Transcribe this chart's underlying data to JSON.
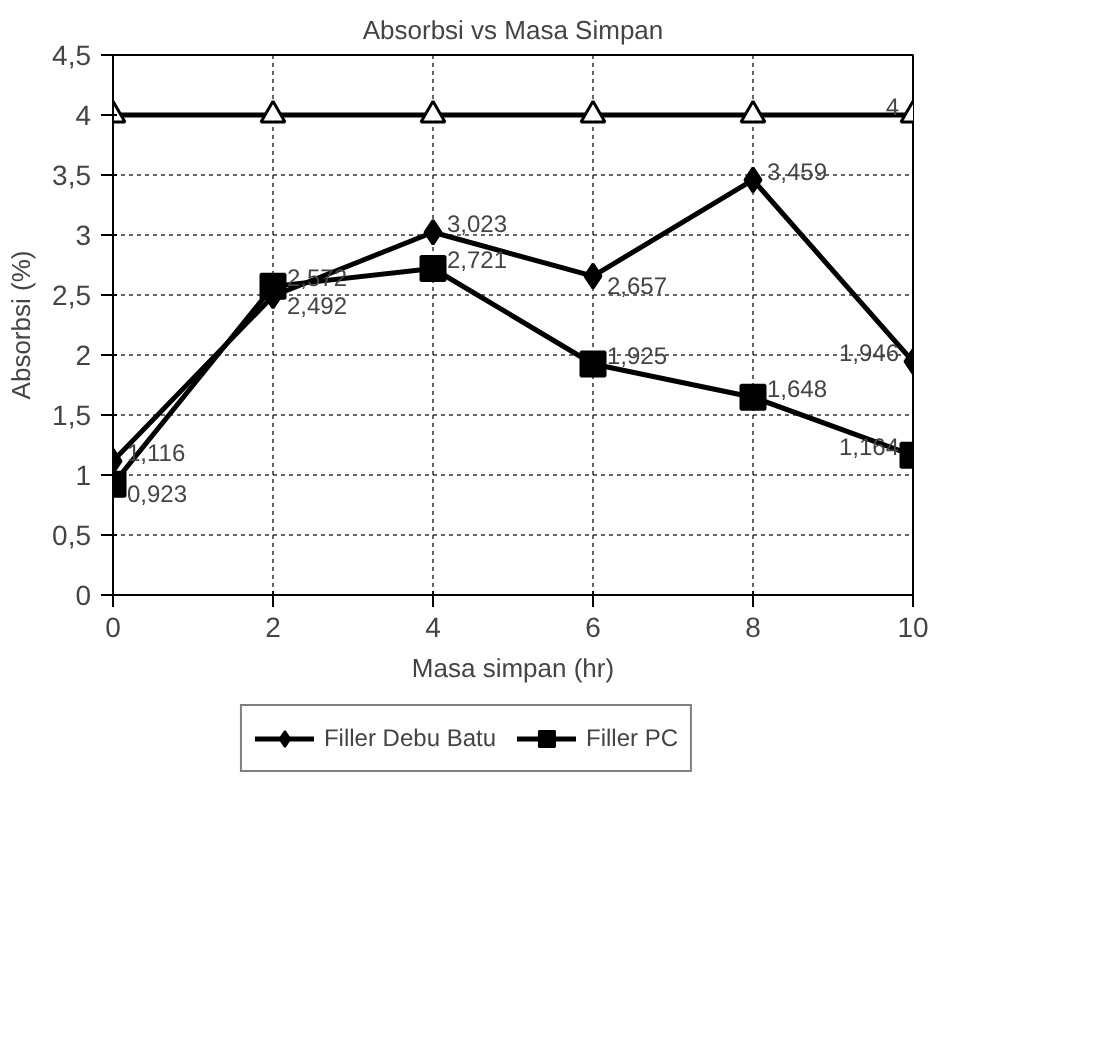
{
  "chart_data": {
    "type": "line",
    "title": "Absorbsi vs Masa Simpan",
    "xlabel": "Masa simpan (hr)",
    "ylabel": "Absorbsi (%)",
    "x": [
      0,
      2,
      4,
      6,
      8,
      10
    ],
    "xlim": [
      0,
      10
    ],
    "xticks": [
      0,
      2,
      4,
      6,
      8,
      10
    ],
    "ylim": [
      0,
      4.5
    ],
    "yticks": [
      {
        "value": 0,
        "label": "0"
      },
      {
        "value": 0.5,
        "label": "0,5"
      },
      {
        "value": 1,
        "label": "1"
      },
      {
        "value": 1.5,
        "label": "1,5"
      },
      {
        "value": 2,
        "label": "2"
      },
      {
        "value": 2.5,
        "label": "2,5"
      },
      {
        "value": 3,
        "label": "3"
      },
      {
        "value": 3.5,
        "label": "3,5"
      },
      {
        "value": 4,
        "label": "4"
      },
      {
        "value": 4.5,
        "label": "4,5"
      }
    ],
    "grid": true,
    "legend": "bottom",
    "line_style": "solid",
    "series": [
      {
        "name": "Filler Debu Batu",
        "color": "#000000",
        "marker": "diamond",
        "values": [
          1.116,
          2.492,
          3.023,
          2.657,
          3.459,
          1.946
        ],
        "value_labels": [
          "1,116",
          "2,492",
          "3,023",
          "2,657",
          "3,459",
          "1,946"
        ]
      },
      {
        "name": "Filler PC",
        "color": "#000000",
        "marker": "square",
        "values": [
          0.923,
          2.572,
          2.721,
          1.925,
          1.648,
          1.164
        ],
        "value_labels": [
          "0,923",
          "2,572",
          "2,721",
          "1,925",
          "1,648",
          "1,164"
        ]
      },
      {
        "color": "#000000",
        "marker": "triangle",
        "values": [
          4,
          4,
          4,
          4,
          4,
          4
        ],
        "value_labels": [
          null,
          null,
          null,
          null,
          null,
          "4"
        ]
      }
    ]
  }
}
